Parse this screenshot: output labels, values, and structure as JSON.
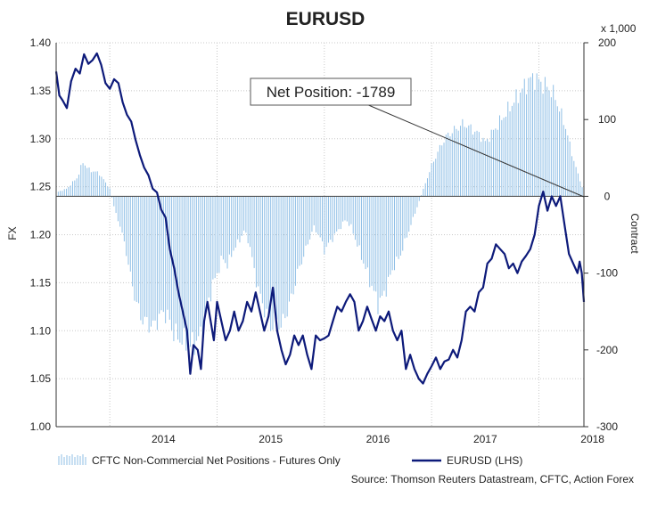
{
  "chart_data": {
    "type": "bar+line",
    "title": "EURUSD",
    "left_axis": {
      "label": "FX",
      "ylim": [
        1.0,
        1.4
      ],
      "ticks": [
        "1.00",
        "1.05",
        "1.10",
        "1.15",
        "1.20",
        "1.25",
        "1.30",
        "1.35",
        "1.40"
      ]
    },
    "right_axis": {
      "label": "Contract",
      "unit": "x 1,000",
      "ylim": [
        -300,
        200
      ],
      "ticks": [
        "200",
        "100",
        "0",
        "-100",
        "-200",
        "-300"
      ]
    },
    "x_axis": {
      "range": [
        2013.5,
        2018.42
      ],
      "ticks": [
        "2014",
        "2015",
        "2016",
        "2017",
        "2018"
      ]
    },
    "grid": true,
    "annotation": "Net Position: -1789",
    "legend": {
      "bars": "CFTC Non-Commercial Net Positions - Futures Only",
      "line": "EURUSD (LHS)"
    },
    "source": "Source: Thomson Reuters Datastream, CFTC, Action Forex",
    "series": [
      {
        "name": "EURUSD (LHS)",
        "axis": "left",
        "points": [
          [
            2013.5,
            1.37
          ],
          [
            2013.53,
            1.345
          ],
          [
            2013.56,
            1.34
          ],
          [
            2013.6,
            1.332
          ],
          [
            2013.64,
            1.36
          ],
          [
            2013.68,
            1.373
          ],
          [
            2013.72,
            1.368
          ],
          [
            2013.76,
            1.388
          ],
          [
            2013.8,
            1.378
          ],
          [
            2013.84,
            1.382
          ],
          [
            2013.88,
            1.389
          ],
          [
            2013.92,
            1.377
          ],
          [
            2013.96,
            1.358
          ],
          [
            2014.0,
            1.352
          ],
          [
            2014.04,
            1.362
          ],
          [
            2014.08,
            1.358
          ],
          [
            2014.12,
            1.338
          ],
          [
            2014.16,
            1.325
          ],
          [
            2014.2,
            1.318
          ],
          [
            2014.24,
            1.299
          ],
          [
            2014.28,
            1.283
          ],
          [
            2014.32,
            1.27
          ],
          [
            2014.36,
            1.262
          ],
          [
            2014.4,
            1.248
          ],
          [
            2014.44,
            1.244
          ],
          [
            2014.48,
            1.226
          ],
          [
            2014.52,
            1.218
          ],
          [
            2014.56,
            1.185
          ],
          [
            2014.6,
            1.165
          ],
          [
            2014.64,
            1.14
          ],
          [
            2014.68,
            1.12
          ],
          [
            2014.72,
            1.1
          ],
          [
            2014.75,
            1.055
          ],
          [
            2014.78,
            1.085
          ],
          [
            2014.82,
            1.08
          ],
          [
            2014.85,
            1.06
          ],
          [
            2014.88,
            1.11
          ],
          [
            2014.91,
            1.13
          ],
          [
            2014.94,
            1.11
          ],
          [
            2014.97,
            1.09
          ],
          [
            2015.0,
            1.13
          ],
          [
            2015.04,
            1.11
          ],
          [
            2015.08,
            1.09
          ],
          [
            2015.12,
            1.1
          ],
          [
            2015.16,
            1.12
          ],
          [
            2015.2,
            1.1
          ],
          [
            2015.24,
            1.11
          ],
          [
            2015.28,
            1.13
          ],
          [
            2015.32,
            1.12
          ],
          [
            2015.36,
            1.14
          ],
          [
            2015.4,
            1.12
          ],
          [
            2015.44,
            1.1
          ],
          [
            2015.48,
            1.115
          ],
          [
            2015.52,
            1.145
          ],
          [
            2015.56,
            1.1
          ],
          [
            2015.6,
            1.08
          ],
          [
            2015.64,
            1.065
          ],
          [
            2015.68,
            1.075
          ],
          [
            2015.72,
            1.095
          ],
          [
            2015.76,
            1.085
          ],
          [
            2015.8,
            1.095
          ],
          [
            2015.84,
            1.075
          ],
          [
            2015.88,
            1.06
          ],
          [
            2015.92,
            1.095
          ],
          [
            2015.96,
            1.09
          ],
          [
            2016.0,
            1.092
          ],
          [
            2016.04,
            1.095
          ],
          [
            2016.08,
            1.11
          ],
          [
            2016.12,
            1.125
          ],
          [
            2016.16,
            1.12
          ],
          [
            2016.2,
            1.13
          ],
          [
            2016.24,
            1.138
          ],
          [
            2016.28,
            1.13
          ],
          [
            2016.32,
            1.1
          ],
          [
            2016.36,
            1.11
          ],
          [
            2016.4,
            1.125
          ],
          [
            2016.44,
            1.112
          ],
          [
            2016.48,
            1.1
          ],
          [
            2016.52,
            1.115
          ],
          [
            2016.56,
            1.11
          ],
          [
            2016.6,
            1.12
          ],
          [
            2016.64,
            1.1
          ],
          [
            2016.68,
            1.09
          ],
          [
            2016.72,
            1.1
          ],
          [
            2016.76,
            1.06
          ],
          [
            2016.8,
            1.075
          ],
          [
            2016.84,
            1.06
          ],
          [
            2016.88,
            1.05
          ],
          [
            2016.92,
            1.045
          ],
          [
            2016.96,
            1.055
          ],
          [
            2017.0,
            1.063
          ],
          [
            2017.04,
            1.072
          ],
          [
            2017.08,
            1.06
          ],
          [
            2017.12,
            1.068
          ],
          [
            2017.16,
            1.07
          ],
          [
            2017.2,
            1.08
          ],
          [
            2017.24,
            1.072
          ],
          [
            2017.28,
            1.09
          ],
          [
            2017.32,
            1.12
          ],
          [
            2017.36,
            1.125
          ],
          [
            2017.4,
            1.12
          ],
          [
            2017.44,
            1.14
          ],
          [
            2017.48,
            1.145
          ],
          [
            2017.52,
            1.17
          ],
          [
            2017.56,
            1.175
          ],
          [
            2017.6,
            1.19
          ],
          [
            2017.64,
            1.185
          ],
          [
            2017.68,
            1.18
          ],
          [
            2017.72,
            1.165
          ],
          [
            2017.76,
            1.17
          ],
          [
            2017.8,
            1.16
          ],
          [
            2017.84,
            1.172
          ],
          [
            2017.88,
            1.178
          ],
          [
            2017.92,
            1.185
          ],
          [
            2017.96,
            1.2
          ],
          [
            2018.0,
            1.23
          ],
          [
            2018.04,
            1.245
          ],
          [
            2018.08,
            1.225
          ],
          [
            2018.12,
            1.24
          ],
          [
            2018.16,
            1.23
          ],
          [
            2018.2,
            1.24
          ],
          [
            2018.24,
            1.21
          ],
          [
            2018.28,
            1.18
          ],
          [
            2018.32,
            1.17
          ],
          [
            2018.34,
            1.165
          ],
          [
            2018.36,
            1.16
          ],
          [
            2018.38,
            1.172
          ],
          [
            2018.4,
            1.16
          ],
          [
            2018.42,
            1.13
          ]
        ]
      },
      {
        "name": "CFTC Non-Commercial Net Positions - Futures Only",
        "axis": "right",
        "points": [
          [
            2013.5,
            5
          ],
          [
            2013.6,
            10
          ],
          [
            2013.7,
            25
          ],
          [
            2013.75,
            45
          ],
          [
            2013.8,
            35
          ],
          [
            2013.9,
            30
          ],
          [
            2014.0,
            10
          ],
          [
            2014.05,
            -20
          ],
          [
            2014.1,
            -40
          ],
          [
            2014.15,
            -70
          ],
          [
            2014.2,
            -110
          ],
          [
            2014.25,
            -140
          ],
          [
            2014.3,
            -160
          ],
          [
            2014.35,
            -165
          ],
          [
            2014.4,
            -170
          ],
          [
            2014.5,
            -150
          ],
          [
            2014.55,
            -160
          ],
          [
            2014.6,
            -180
          ],
          [
            2014.65,
            -185
          ],
          [
            2014.7,
            -190
          ],
          [
            2014.75,
            -195
          ],
          [
            2014.8,
            -190
          ],
          [
            2014.85,
            -180
          ],
          [
            2014.9,
            -150
          ],
          [
            2014.95,
            -120
          ],
          [
            2015.0,
            -100
          ],
          [
            2015.05,
            -80
          ],
          [
            2015.1,
            -90
          ],
          [
            2015.15,
            -70
          ],
          [
            2015.2,
            -60
          ],
          [
            2015.25,
            -45
          ],
          [
            2015.3,
            -60
          ],
          [
            2015.35,
            -100
          ],
          [
            2015.4,
            -130
          ],
          [
            2015.45,
            -150
          ],
          [
            2015.5,
            -170
          ],
          [
            2015.55,
            -160
          ],
          [
            2015.6,
            -170
          ],
          [
            2015.65,
            -150
          ],
          [
            2015.7,
            -130
          ],
          [
            2015.75,
            -100
          ],
          [
            2015.8,
            -80
          ],
          [
            2015.85,
            -60
          ],
          [
            2015.9,
            -40
          ],
          [
            2015.95,
            -50
          ],
          [
            2016.0,
            -70
          ],
          [
            2016.05,
            -60
          ],
          [
            2016.1,
            -50
          ],
          [
            2016.15,
            -40
          ],
          [
            2016.2,
            -30
          ],
          [
            2016.25,
            -40
          ],
          [
            2016.3,
            -60
          ],
          [
            2016.35,
            -80
          ],
          [
            2016.4,
            -100
          ],
          [
            2016.45,
            -120
          ],
          [
            2016.5,
            -140
          ],
          [
            2016.55,
            -130
          ],
          [
            2016.6,
            -110
          ],
          [
            2016.65,
            -90
          ],
          [
            2016.7,
            -80
          ],
          [
            2016.75,
            -60
          ],
          [
            2016.8,
            -40
          ],
          [
            2016.85,
            -20
          ],
          [
            2016.9,
            0
          ],
          [
            2016.95,
            20
          ],
          [
            2017.0,
            40
          ],
          [
            2017.05,
            55
          ],
          [
            2017.1,
            70
          ],
          [
            2017.15,
            80
          ],
          [
            2017.2,
            85
          ],
          [
            2017.25,
            90
          ],
          [
            2017.3,
            95
          ],
          [
            2017.35,
            90
          ],
          [
            2017.4,
            85
          ],
          [
            2017.45,
            80
          ],
          [
            2017.5,
            70
          ],
          [
            2017.55,
            80
          ],
          [
            2017.6,
            90
          ],
          [
            2017.65,
            100
          ],
          [
            2017.7,
            110
          ],
          [
            2017.75,
            120
          ],
          [
            2017.8,
            130
          ],
          [
            2017.85,
            140
          ],
          [
            2017.9,
            150
          ],
          [
            2017.95,
            155
          ],
          [
            2018.0,
            150
          ],
          [
            2018.05,
            145
          ],
          [
            2018.1,
            140
          ],
          [
            2018.15,
            130
          ],
          [
            2018.2,
            110
          ],
          [
            2018.25,
            90
          ],
          [
            2018.3,
            60
          ],
          [
            2018.35,
            35
          ],
          [
            2018.4,
            15
          ],
          [
            2018.42,
            -2
          ]
        ]
      }
    ]
  }
}
